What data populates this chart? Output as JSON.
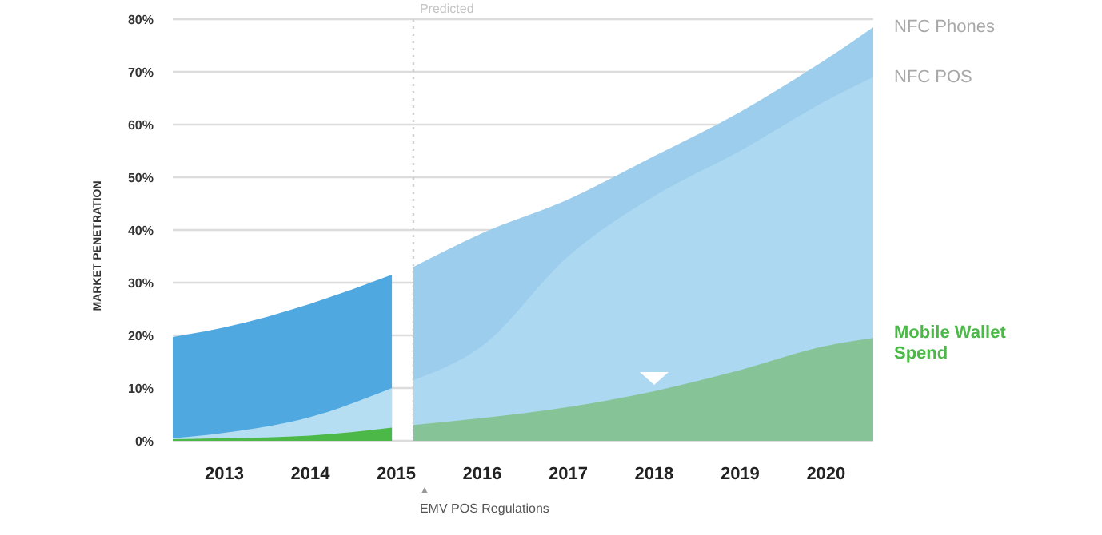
{
  "chart_data": {
    "type": "area",
    "ylabel": "MARKET PENETRATION",
    "xlim": [
      2012.4,
      2020.55
    ],
    "xticks": [
      2013,
      2014,
      2015,
      2016,
      2017,
      2018,
      2019,
      2020
    ],
    "ylim": [
      0,
      80
    ],
    "yticks": [
      {
        "value": 0,
        "label": "0%"
      },
      {
        "value": 10,
        "label": "10%"
      },
      {
        "value": 20,
        "label": "20%"
      },
      {
        "value": 30,
        "label": "30%"
      },
      {
        "value": 40,
        "label": "40%"
      },
      {
        "value": 50,
        "label": "50%"
      },
      {
        "value": 60,
        "label": "60%"
      },
      {
        "value": 70,
        "label": "70%"
      },
      {
        "value": 80,
        "label": "80%"
      }
    ],
    "grid": "y",
    "series": [
      {
        "color": "#4fa8e0",
        "x": [
          2012.4,
          2013,
          2014,
          2014.95
        ],
        "values": [
          19.7,
          21.5,
          26,
          31.5
        ]
      },
      {
        "color": "#b5def3",
        "x": [
          2012.4,
          2013,
          2014,
          2014.95
        ],
        "values": [
          0.5,
          1.5,
          4.5,
          10
        ]
      },
      {
        "color": "#4cb848",
        "x": [
          2012.4,
          2013,
          2014,
          2014.95
        ],
        "values": [
          0.3,
          0.5,
          1,
          2.5
        ]
      },
      {
        "name": "NFC Phones",
        "color": "#9ccdec",
        "x": [
          2015.2,
          2016,
          2017,
          2018,
          2019,
          2020,
          2020.55
        ],
        "values": [
          33,
          39.4,
          45.8,
          54,
          62.4,
          72.4,
          78.5
        ]
      },
      {
        "name": "NFC POS",
        "color": "#acd8f1",
        "x": [
          2015.2,
          2016,
          2017,
          2018,
          2019,
          2020,
          2020.55
        ],
        "values": [
          11.5,
          18,
          35,
          46.4,
          55,
          64.5,
          69
        ]
      },
      {
        "name": "Mobile Wallet Spend",
        "color": "#86c497",
        "x": [
          2015.2,
          2016,
          2017,
          2018,
          2019,
          2020,
          2020.55
        ],
        "values": [
          3,
          4.3,
          6.4,
          9.4,
          13.4,
          18,
          19.5
        ]
      }
    ],
    "ref_lines": [
      {
        "axis": "x",
        "value": 2015.2,
        "label": "Predicted",
        "color": "#cfcfcf",
        "line_style": "dotted"
      }
    ],
    "annotations": [
      "EMV POS Regulations"
    ]
  }
}
